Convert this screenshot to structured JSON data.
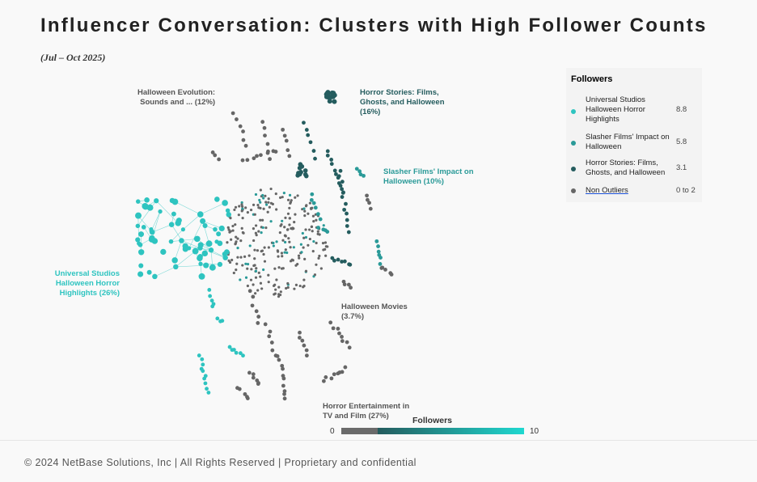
{
  "header": {
    "title": "Influencer Conversation: Clusters with High Follower Counts",
    "subtitle": "(Jul – Oct 2025)"
  },
  "chart_data": {
    "type": "network",
    "clusters": [
      {
        "name": "Halloween Evolution: Sounds and ... (12%)",
        "line1": "Halloween Evolution:",
        "line2": "Sounds and ... (12%)",
        "color": "#666666"
      },
      {
        "name": "Horror Stories: Films, Ghosts, and Halloween (16%)",
        "line1": "Horror Stories: Films,",
        "line2": "Ghosts, and Halloween",
        "line3": "(16%)",
        "color": "#245c5e"
      },
      {
        "name": "Slasher Films' Impact on Halloween (10%)",
        "line1": "Slasher Films' Impact on",
        "line2": "Halloween (10%)",
        "color": "#2a9a98"
      },
      {
        "name": "Universal Studios Halloween Horror Highlights (26%)",
        "line1": "Universal Studios",
        "line2": "Halloween Horror",
        "line3": "Highlights (26%)",
        "color": "#2ec4c0"
      },
      {
        "name": "Halloween Movies (3.7%)",
        "line1": "Halloween Movies",
        "line2": "(3.7%)",
        "color": "#666666"
      },
      {
        "name": "Horror Entertainment in TV and Film (27%)",
        "line1": "Horror Entertainment in",
        "line2": "TV and Film (27%)",
        "color": "#666666"
      }
    ],
    "legend": {
      "title": "Followers",
      "items": [
        {
          "label": "Universal Studios Halloween Horror Highlights",
          "value": "8.8",
          "color": "#2ec4c0"
        },
        {
          "label": "Slasher Films' Impact on Halloween",
          "value": "5.8",
          "color": "#2a9a98"
        },
        {
          "label": "Horror Stories: Films, Ghosts, and Halloween",
          "value": "3.1",
          "color": "#245c5e"
        },
        {
          "label": "Non Outliers",
          "value": "0 to 2",
          "color": "#666666"
        }
      ]
    },
    "colorbar": {
      "title": "Followers",
      "min": "0",
      "max": "10",
      "colors": [
        "#6b6b6b",
        "#245c5e",
        "#1fd8d0"
      ]
    }
  },
  "footer": {
    "text": "© 2024 NetBase Solutions, Inc | All Rights Reserved | Proprietary and confidential"
  }
}
